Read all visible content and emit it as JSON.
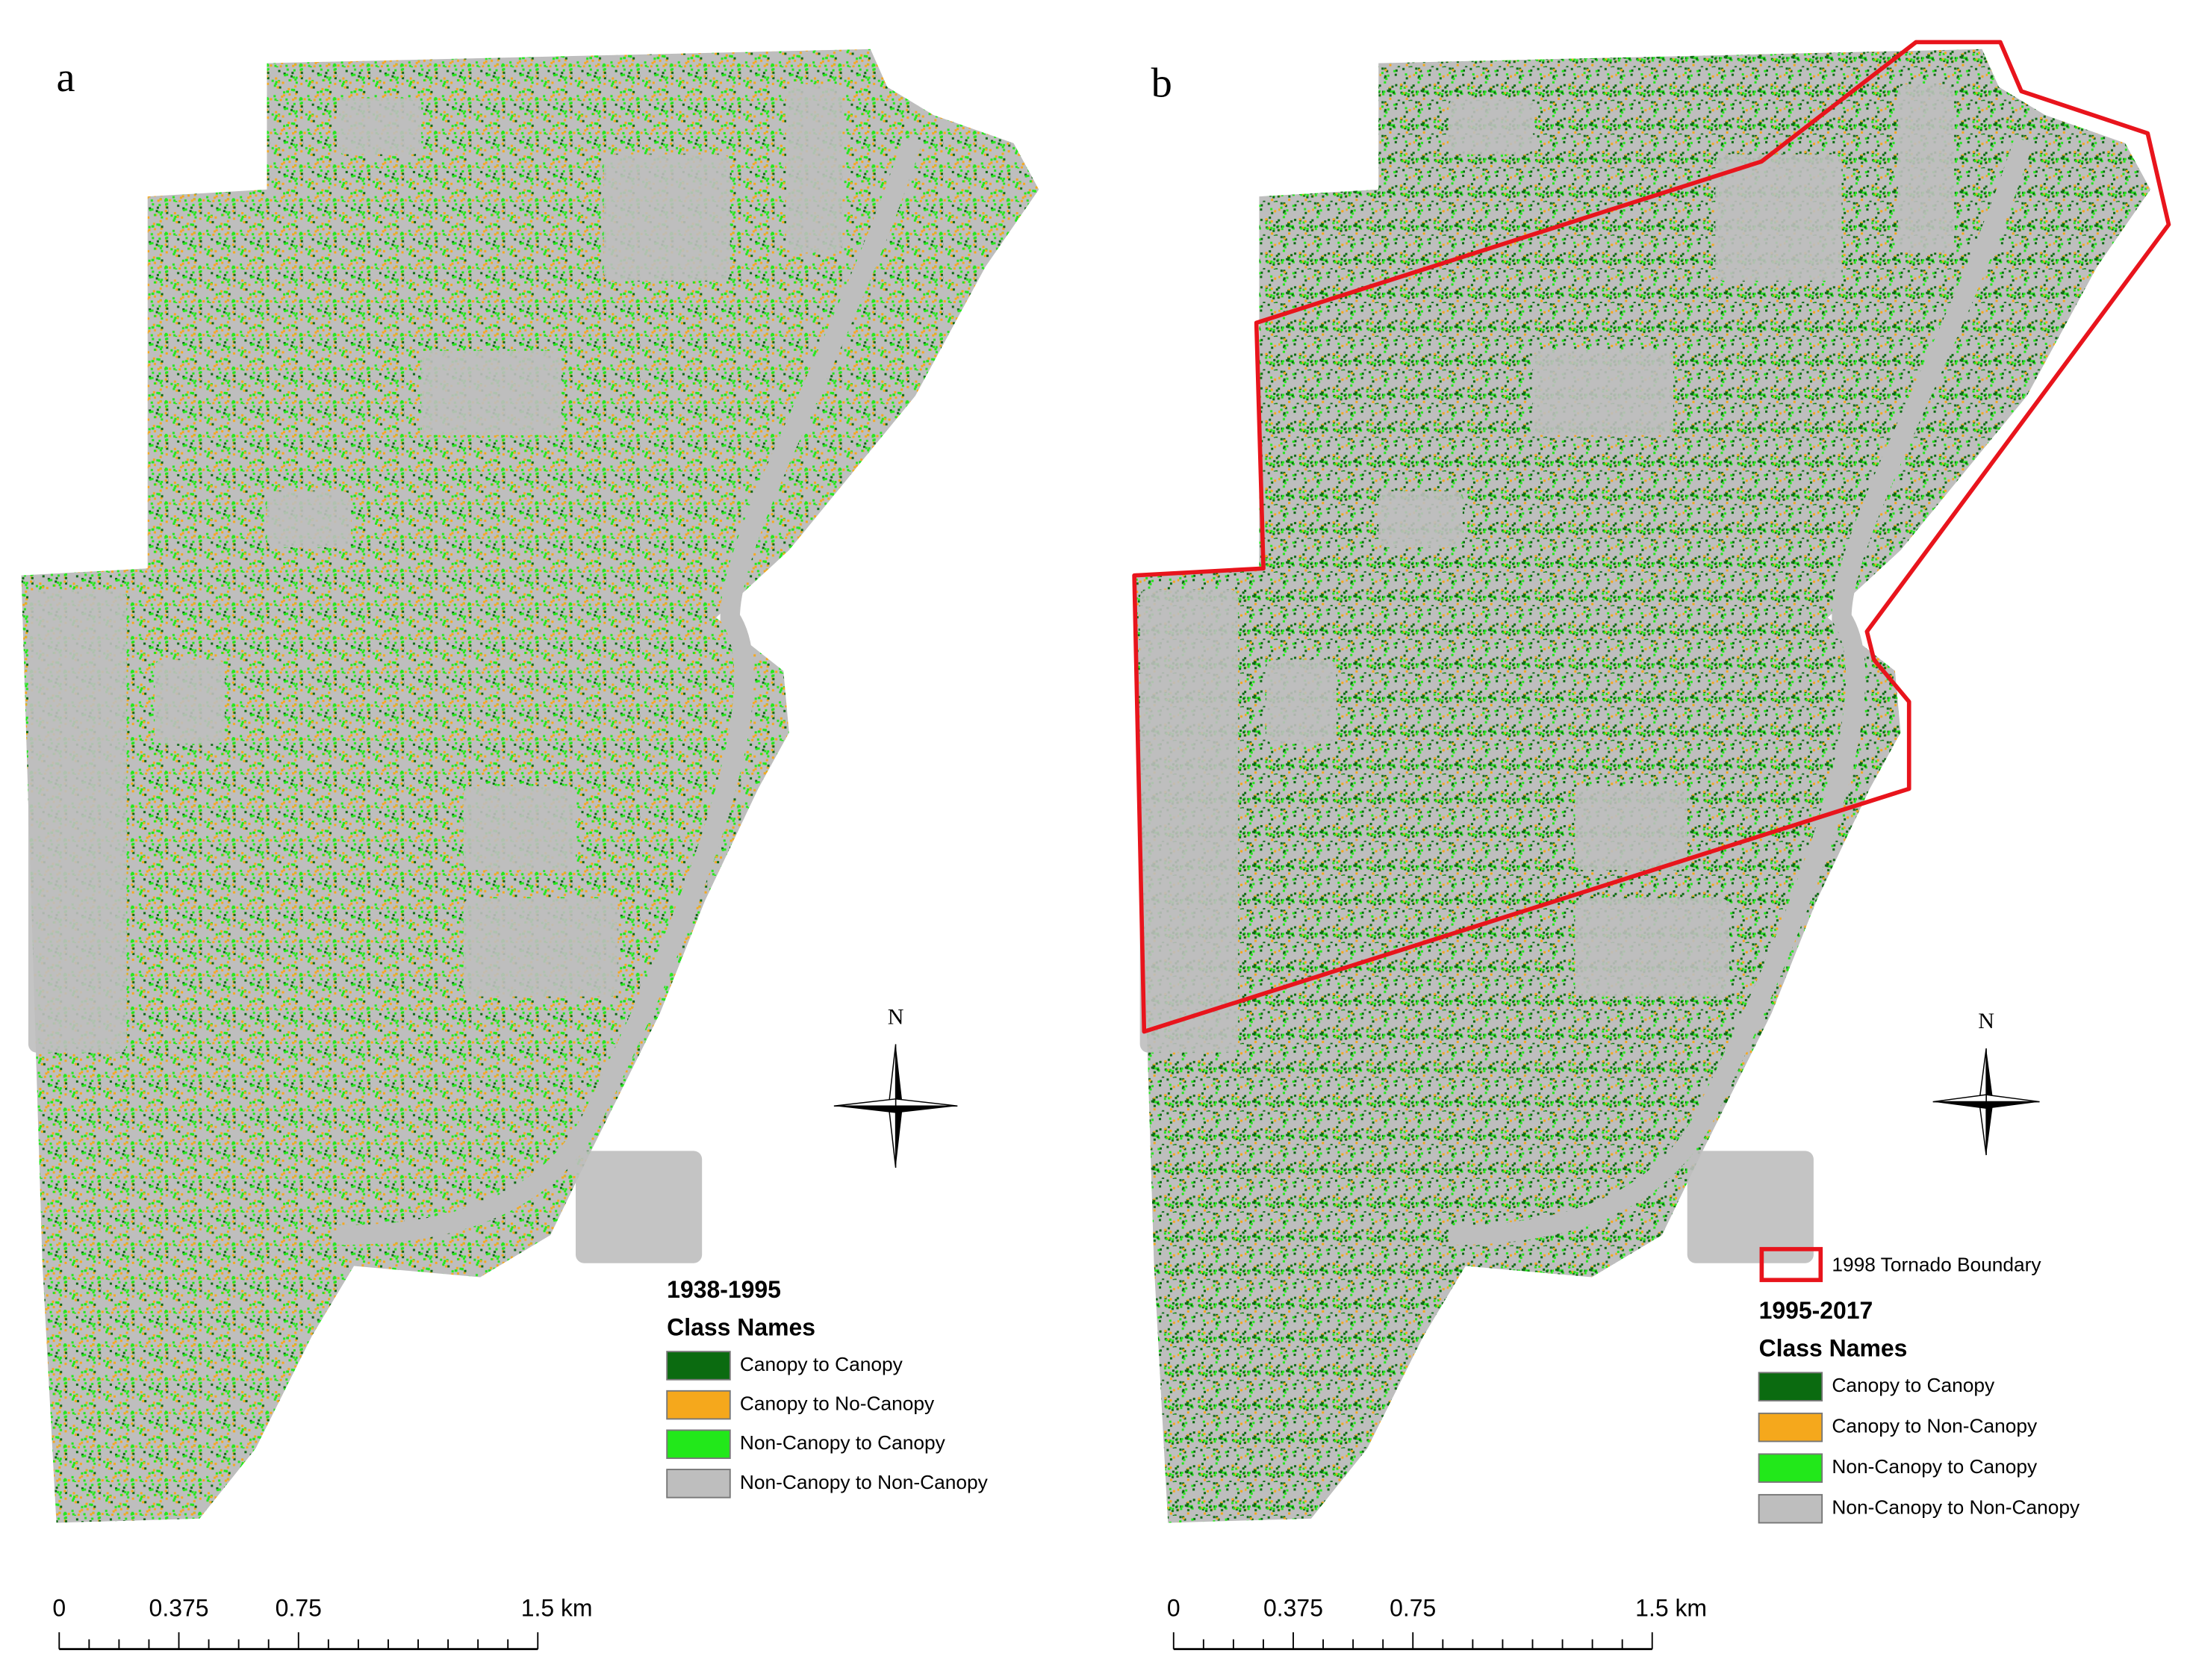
{
  "panels": [
    {
      "label": "a",
      "legend": {
        "title": "1938-1995",
        "heading": "Class Names",
        "classes": [
          {
            "name": "Canopy to Canopy",
            "color": "#0b6b10"
          },
          {
            "name": "Canopy to No-Canopy",
            "color": "#f5a81c"
          },
          {
            "name": "Non-Canopy to Canopy",
            "color": "#22e81a"
          },
          {
            "name": "Non-Canopy to Non-Canopy",
            "color": "#bebebe"
          }
        ]
      },
      "north": "N",
      "scale_bar": [
        "0",
        "0.375",
        "0.75",
        "1.5 km"
      ]
    },
    {
      "label": "b",
      "boundary_legend": {
        "name": "1998 Tornado Boundary",
        "color": "#e8141c"
      },
      "legend": {
        "title": "1995-2017",
        "heading": "Class Names",
        "classes": [
          {
            "name": "Canopy to Canopy",
            "color": "#0b6b10"
          },
          {
            "name": "Canopy to Non-Canopy",
            "color": "#f5a81c"
          },
          {
            "name": "Non-Canopy to Canopy",
            "color": "#22e81a"
          },
          {
            "name": "Non-Canopy to Non-Canopy",
            "color": "#bebebe"
          }
        ]
      },
      "north": "N",
      "scale_bar": [
        "0",
        "0.375",
        "0.75",
        "1.5 km"
      ]
    }
  ]
}
